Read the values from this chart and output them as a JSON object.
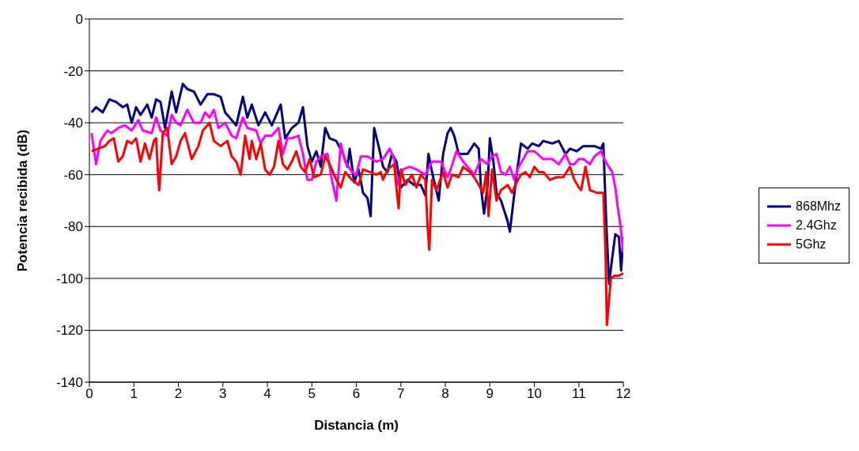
{
  "chart_data": {
    "type": "line",
    "xlabel": "Distancia (m)",
    "ylabel": "Potencia recibida (dB)",
    "xlim": [
      0,
      12
    ],
    "xticks": [
      0,
      1,
      2,
      3,
      4,
      5,
      6,
      7,
      8,
      9,
      10,
      11,
      12
    ],
    "ylim": [
      -140,
      0
    ],
    "yticks": [
      -140,
      -120,
      -100,
      -80,
      -60,
      -40,
      -20,
      0
    ],
    "grid": "y",
    "legend": "right",
    "marker": "none",
    "line_style": "solid",
    "series": [
      {
        "name": "868Mhz",
        "color": "#000080",
        "x": [
          0.05,
          0.15,
          0.3,
          0.45,
          0.6,
          0.75,
          0.85,
          0.95,
          1.05,
          1.15,
          1.3,
          1.4,
          1.5,
          1.6,
          1.7,
          1.85,
          1.95,
          2.1,
          2.2,
          2.35,
          2.5,
          2.65,
          2.8,
          2.95,
          3.05,
          3.15,
          3.3,
          3.45,
          3.55,
          3.65,
          3.8,
          3.95,
          4.1,
          4.2,
          4.3,
          4.4,
          4.55,
          4.7,
          4.8,
          4.9,
          5.0,
          5.1,
          5.2,
          5.3,
          5.4,
          5.55,
          5.7,
          5.8,
          5.85,
          5.95,
          6.05,
          6.15,
          6.25,
          6.32,
          6.4,
          6.5,
          6.6,
          6.7,
          6.8,
          6.9,
          7.0,
          7.15,
          7.3,
          7.45,
          7.55,
          7.62,
          7.7,
          7.85,
          7.95,
          8.05,
          8.12,
          8.2,
          8.3,
          8.5,
          8.65,
          8.75,
          8.8,
          8.87,
          8.95,
          9.0,
          9.08,
          9.15,
          9.25,
          9.4,
          9.45,
          9.6,
          9.7,
          9.85,
          9.95,
          10.1,
          10.2,
          10.4,
          10.55,
          10.7,
          10.8,
          10.95,
          11.1,
          11.35,
          11.5,
          11.55,
          11.62,
          11.68,
          11.75,
          11.82,
          11.9,
          11.95,
          12.0
        ],
        "values": [
          -36,
          -34,
          -36,
          -31,
          -32,
          -34,
          -33,
          -40,
          -34,
          -37,
          -33,
          -38,
          -31,
          -32,
          -42,
          -28,
          -36,
          -25,
          -27,
          -28,
          -33,
          -29,
          -29,
          -30,
          -36,
          -38,
          -41,
          -30,
          -38,
          -33,
          -41,
          -36,
          -41,
          -37,
          -33,
          -46,
          -42,
          -40,
          -34,
          -49,
          -55,
          -51,
          -57,
          -42,
          -46,
          -47,
          -52,
          -57,
          -50,
          -63,
          -58,
          -67,
          -69,
          -76,
          -42,
          -49,
          -57,
          -59,
          -52,
          -55,
          -65,
          -62,
          -64,
          -64,
          -68,
          -52,
          -59,
          -70,
          -52,
          -44,
          -42,
          -45,
          -52,
          -52,
          -48,
          -50,
          -65,
          -75,
          -64,
          -46,
          -55,
          -67,
          -70,
          -78,
          -82,
          -60,
          -48,
          -50,
          -48,
          -49,
          -47,
          -48,
          -47,
          -52,
          -50,
          -51,
          -49,
          -49,
          -50,
          -48,
          -80,
          -102,
          -92,
          -83,
          -84,
          -97,
          -84
        ]
      },
      {
        "name": "2.4Ghz",
        "color": "#ff00ff",
        "x": [
          0.05,
          0.15,
          0.25,
          0.4,
          0.5,
          0.65,
          0.8,
          0.95,
          1.1,
          1.2,
          1.4,
          1.5,
          1.6,
          1.75,
          1.85,
          1.95,
          2.05,
          2.2,
          2.35,
          2.5,
          2.6,
          2.7,
          2.8,
          2.9,
          3.05,
          3.2,
          3.3,
          3.45,
          3.55,
          3.75,
          3.85,
          3.95,
          4.1,
          4.25,
          4.35,
          4.45,
          4.55,
          4.7,
          4.8,
          4.9,
          5.0,
          5.1,
          5.2,
          5.35,
          5.45,
          5.55,
          5.65,
          5.75,
          5.9,
          6.0,
          6.1,
          6.25,
          6.45,
          6.6,
          6.75,
          6.85,
          6.92,
          7.05,
          7.2,
          7.35,
          7.55,
          7.7,
          7.9,
          8.05,
          8.12,
          8.25,
          8.4,
          8.5,
          8.65,
          8.8,
          8.95,
          9.05,
          9.15,
          9.25,
          9.35,
          9.45,
          9.55,
          9.65,
          9.85,
          10.0,
          10.2,
          10.4,
          10.55,
          10.7,
          10.8,
          10.9,
          11.0,
          11.1,
          11.25,
          11.35,
          11.5,
          11.6,
          11.75,
          11.82,
          11.87,
          11.93,
          12.0
        ],
        "values": [
          -44,
          -56,
          -47,
          -43,
          -44,
          -42,
          -41,
          -43,
          -39,
          -43,
          -44,
          -38,
          -43,
          -45,
          -37,
          -40,
          -41,
          -35,
          -40,
          -40,
          -36,
          -38,
          -35,
          -42,
          -40,
          -45,
          -46,
          -38,
          -42,
          -43,
          -48,
          -45,
          -45,
          -42,
          -52,
          -46,
          -46,
          -45,
          -52,
          -62,
          -62,
          -55,
          -53,
          -52,
          -62,
          -70,
          -48,
          -55,
          -59,
          -60,
          -53,
          -53,
          -55,
          -54,
          -50,
          -54,
          -64,
          -58,
          -57,
          -58,
          -60,
          -55,
          -55,
          -61,
          -58,
          -51,
          -55,
          -57,
          -60,
          -54,
          -56,
          -53,
          -52,
          -59,
          -60,
          -57,
          -62,
          -57,
          -51,
          -51,
          -54,
          -54,
          -56,
          -52,
          -56,
          -56,
          -54,
          -54,
          -56,
          -53,
          -51,
          -55,
          -59,
          -65,
          -72,
          -79,
          -90
        ]
      },
      {
        "name": "5Ghz",
        "color": "#ff0000",
        "x": [
          0.05,
          0.2,
          0.35,
          0.45,
          0.55,
          0.65,
          0.75,
          0.85,
          0.95,
          1.05,
          1.15,
          1.25,
          1.35,
          1.45,
          1.5,
          1.55,
          1.57,
          1.65,
          1.75,
          1.85,
          1.95,
          2.05,
          2.15,
          2.3,
          2.45,
          2.55,
          2.7,
          2.8,
          2.95,
          3.1,
          3.2,
          3.3,
          3.4,
          3.5,
          3.6,
          3.65,
          3.75,
          3.85,
          3.95,
          4.05,
          4.15,
          4.25,
          4.35,
          4.45,
          4.55,
          4.65,
          4.75,
          4.85,
          4.95,
          5.05,
          5.2,
          5.3,
          5.4,
          5.55,
          5.65,
          5.75,
          5.9,
          6.05,
          6.15,
          6.3,
          6.45,
          6.55,
          6.6,
          6.7,
          6.85,
          6.9,
          6.95,
          7.0,
          7.1,
          7.25,
          7.35,
          7.45,
          7.55,
          7.6,
          7.64,
          7.7,
          7.8,
          7.95,
          8.05,
          8.15,
          8.3,
          8.4,
          8.55,
          8.65,
          8.75,
          8.85,
          8.92,
          8.97,
          9.05,
          9.15,
          9.25,
          9.4,
          9.5,
          9.6,
          9.7,
          9.8,
          9.9,
          10.0,
          10.1,
          10.2,
          10.35,
          10.5,
          10.65,
          10.8,
          10.9,
          11.0,
          11.05,
          11.15,
          11.25,
          11.4,
          11.55,
          11.6,
          11.63,
          11.67,
          11.72,
          11.8,
          11.9,
          12.0
        ],
        "values": [
          -51,
          -50,
          -49,
          -47,
          -46,
          -55,
          -53,
          -47,
          -48,
          -46,
          -55,
          -48,
          -54,
          -47,
          -46,
          -62,
          -66,
          -44,
          -42,
          -56,
          -53,
          -47,
          -44,
          -54,
          -49,
          -43,
          -40,
          -47,
          -49,
          -47,
          -53,
          -55,
          -60,
          -45,
          -54,
          -47,
          -54,
          -48,
          -58,
          -60,
          -57,
          -47,
          -56,
          -58,
          -55,
          -51,
          -57,
          -59,
          -54,
          -61,
          -60,
          -53,
          -56,
          -62,
          -65,
          -59,
          -62,
          -64,
          -58,
          -59,
          -60,
          -59,
          -62,
          -58,
          -56,
          -65,
          -73,
          -58,
          -64,
          -60,
          -65,
          -60,
          -62,
          -80,
          -89,
          -62,
          -66,
          -59,
          -65,
          -60,
          -61,
          -57,
          -59,
          -61,
          -64,
          -67,
          -59,
          -76,
          -58,
          -70,
          -66,
          -64,
          -67,
          -63,
          -60,
          -59,
          -61,
          -57,
          -59,
          -59,
          -62,
          -61,
          -61,
          -57,
          -62,
          -65,
          -66,
          -57,
          -66,
          -67,
          -67,
          -90,
          -118,
          -110,
          -100,
          -99,
          -99,
          -98
        ]
      }
    ]
  }
}
